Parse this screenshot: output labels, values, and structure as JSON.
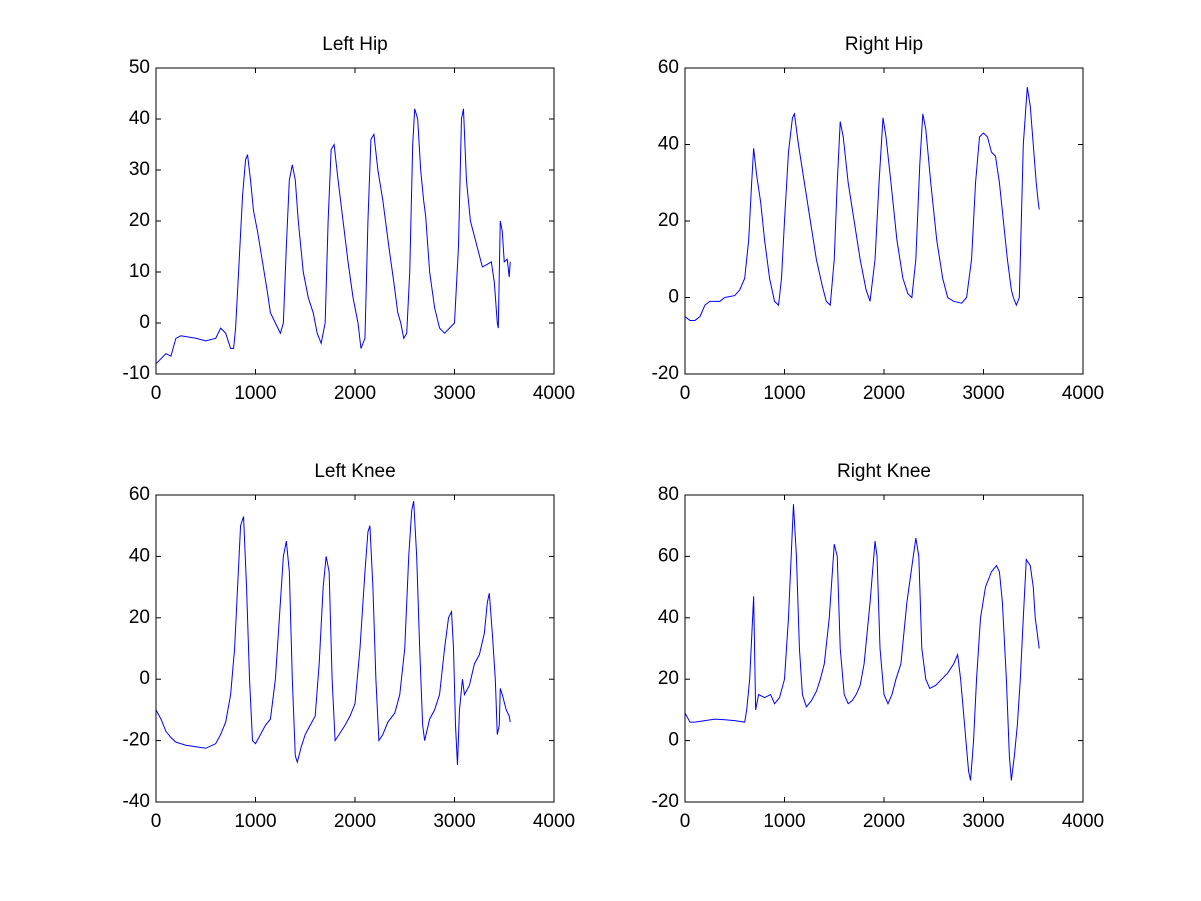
{
  "chart_data": [
    {
      "type": "line",
      "title": "Left Hip",
      "color": "#0000ff",
      "xlim": [
        0,
        4000
      ],
      "xticks": [
        0,
        1000,
        2000,
        3000,
        4000
      ],
      "ylim": [
        -10,
        50
      ],
      "yticks": [
        -10,
        0,
        10,
        20,
        30,
        40,
        50
      ],
      "x": [
        0,
        50,
        100,
        150,
        200,
        250,
        400,
        500,
        600,
        650,
        700,
        750,
        780,
        800,
        830,
        870,
        900,
        920,
        950,
        980,
        1020,
        1070,
        1120,
        1150,
        1200,
        1250,
        1280,
        1310,
        1340,
        1370,
        1400,
        1430,
        1480,
        1530,
        1580,
        1620,
        1660,
        1700,
        1730,
        1760,
        1790,
        1830,
        1880,
        1930,
        1980,
        2030,
        2060,
        2100,
        2130,
        2160,
        2190,
        2230,
        2280,
        2340,
        2390,
        2430,
        2460,
        2490,
        2520,
        2550,
        2580,
        2600,
        2630,
        2660,
        2690,
        2710,
        2750,
        2800,
        2850,
        2900,
        2950,
        3000,
        3040,
        3070,
        3090,
        3120,
        3160,
        3200,
        3240,
        3280,
        3330,
        3370,
        3400,
        3430,
        3440,
        3460,
        3480,
        3500,
        3530,
        3550,
        3560
      ],
      "values": [
        -8,
        -7,
        -6,
        -6.5,
        -3,
        -2.5,
        -3,
        -3.5,
        -3,
        -1,
        -2,
        -5,
        -5,
        -1,
        10,
        25,
        32,
        33,
        28,
        22,
        18,
        12,
        6,
        2,
        0,
        -2,
        0,
        15,
        28,
        31,
        28,
        20,
        10,
        5,
        2,
        -2,
        -4,
        0,
        20,
        34,
        35,
        28,
        20,
        12,
        5,
        0,
        -5,
        -3,
        20,
        36,
        37,
        30,
        24,
        15,
        8,
        2,
        0,
        -3,
        -2,
        10,
        35,
        42,
        40,
        30,
        24,
        21,
        10,
        3,
        -1,
        -2,
        -1,
        0,
        15,
        40,
        42,
        28,
        20,
        17,
        14,
        11,
        11.5,
        12,
        8,
        0,
        -1,
        20,
        18,
        12,
        12.5,
        9,
        12
      ]
    },
    {
      "type": "line",
      "title": "Right Hip",
      "color": "#0000ff",
      "xlim": [
        0,
        4000
      ],
      "xticks": [
        0,
        1000,
        2000,
        3000,
        4000
      ],
      "ylim": [
        -20,
        60
      ],
      "yticks": [
        -20,
        0,
        20,
        40,
        60
      ],
      "x": [
        0,
        50,
        100,
        150,
        200,
        250,
        350,
        400,
        500,
        550,
        600,
        640,
        670,
        690,
        720,
        760,
        800,
        850,
        900,
        940,
        970,
        1000,
        1040,
        1080,
        1100,
        1140,
        1200,
        1260,
        1320,
        1380,
        1420,
        1460,
        1500,
        1530,
        1560,
        1590,
        1640,
        1700,
        1760,
        1820,
        1860,
        1910,
        1950,
        1990,
        2020,
        2070,
        2130,
        2190,
        2240,
        2280,
        2320,
        2360,
        2390,
        2420,
        2470,
        2530,
        2590,
        2640,
        2700,
        2780,
        2830,
        2880,
        2920,
        2960,
        3000,
        3040,
        3080,
        3120,
        3160,
        3200,
        3240,
        3280,
        3300,
        3330,
        3360,
        3380,
        3400,
        3440,
        3470,
        3500,
        3530,
        3550,
        3560
      ],
      "values": [
        -5,
        -6,
        -6,
        -5,
        -2,
        -1,
        -1,
        0,
        0.5,
        2,
        5,
        15,
        30,
        39,
        32,
        25,
        15,
        5,
        -1,
        -2,
        5,
        20,
        38,
        47,
        48,
        40,
        30,
        20,
        10,
        3,
        -1,
        -2,
        10,
        30,
        46,
        42,
        30,
        20,
        10,
        2,
        -1,
        10,
        30,
        47,
        42,
        30,
        15,
        5,
        1,
        0,
        10,
        35,
        48,
        44,
        30,
        15,
        5,
        0,
        -1,
        -1.5,
        0,
        10,
        30,
        42,
        43,
        42,
        38,
        37,
        30,
        20,
        10,
        2,
        0,
        -2,
        0,
        20,
        40,
        55,
        50,
        40,
        30,
        25,
        23
      ]
    },
    {
      "type": "line",
      "title": "Left Knee",
      "color": "#0000ff",
      "xlim": [
        0,
        4000
      ],
      "xticks": [
        0,
        1000,
        2000,
        3000,
        4000
      ],
      "ylim": [
        -40,
        60
      ],
      "yticks": [
        -40,
        -20,
        0,
        20,
        40,
        60
      ],
      "x": [
        0,
        50,
        100,
        150,
        200,
        300,
        400,
        500,
        600,
        650,
        700,
        750,
        790,
        820,
        850,
        880,
        910,
        940,
        970,
        1000,
        1050,
        1100,
        1150,
        1200,
        1240,
        1280,
        1310,
        1340,
        1370,
        1400,
        1420,
        1460,
        1500,
        1550,
        1600,
        1640,
        1680,
        1710,
        1740,
        1770,
        1800,
        1840,
        1900,
        1950,
        2000,
        2050,
        2100,
        2130,
        2150,
        2180,
        2210,
        2240,
        2280,
        2330,
        2400,
        2450,
        2500,
        2540,
        2570,
        2590,
        2620,
        2650,
        2680,
        2700,
        2750,
        2800,
        2850,
        2900,
        2940,
        2970,
        2990,
        3010,
        3030,
        3050,
        3080,
        3100,
        3150,
        3200,
        3250,
        3300,
        3330,
        3350,
        3380,
        3410,
        3430,
        3450,
        3460,
        3480,
        3520,
        3550,
        3560
      ],
      "values": [
        -10,
        -13,
        -17,
        -19,
        -20.5,
        -21.5,
        -22,
        -22.5,
        -21,
        -18,
        -14,
        -5,
        10,
        30,
        50,
        53,
        30,
        0,
        -20,
        -21,
        -18,
        -15,
        -13,
        0,
        20,
        40,
        45,
        35,
        0,
        -25,
        -27,
        -22,
        -18,
        -15,
        -12,
        5,
        30,
        40,
        35,
        0,
        -20,
        -18,
        -15,
        -12,
        -8,
        10,
        35,
        48,
        50,
        30,
        0,
        -20,
        -18,
        -14,
        -11,
        -5,
        10,
        40,
        55,
        58,
        40,
        10,
        -15,
        -20,
        -13,
        -10,
        -5,
        10,
        20,
        22,
        10,
        -15,
        -28,
        -10,
        0,
        -5,
        -2,
        5,
        8,
        15,
        25,
        28,
        15,
        0,
        -18,
        -15,
        -3,
        -5,
        -10,
        -12,
        -14
      ]
    },
    {
      "type": "line",
      "title": "Right Knee",
      "color": "#0000ff",
      "xlim": [
        0,
        4000
      ],
      "xticks": [
        0,
        1000,
        2000,
        3000,
        4000
      ],
      "ylim": [
        -20,
        80
      ],
      "yticks": [
        -20,
        0,
        20,
        40,
        60,
        80
      ],
      "x": [
        0,
        50,
        100,
        200,
        300,
        400,
        500,
        600,
        620,
        650,
        690,
        710,
        740,
        800,
        860,
        900,
        950,
        1000,
        1040,
        1090,
        1120,
        1150,
        1180,
        1220,
        1270,
        1320,
        1360,
        1400,
        1450,
        1500,
        1530,
        1560,
        1600,
        1640,
        1680,
        1720,
        1760,
        1800,
        1860,
        1910,
        1930,
        1960,
        2000,
        2040,
        2080,
        2120,
        2170,
        2230,
        2320,
        2350,
        2380,
        2420,
        2460,
        2520,
        2580,
        2640,
        2700,
        2740,
        2770,
        2810,
        2850,
        2870,
        2900,
        2930,
        2970,
        3020,
        3080,
        3130,
        3160,
        3190,
        3230,
        3260,
        3280,
        3310,
        3340,
        3370,
        3400,
        3430,
        3470,
        3500,
        3520,
        3540,
        3560
      ],
      "values": [
        9,
        6,
        6,
        6.5,
        7,
        6.8,
        6.5,
        6,
        10,
        20,
        47,
        10,
        15,
        14,
        15,
        12,
        14,
        20,
        40,
        77,
        60,
        30,
        15,
        11,
        13,
        16,
        20,
        25,
        40,
        64,
        60,
        30,
        15,
        12,
        13,
        15,
        18,
        25,
        45,
        65,
        60,
        30,
        15,
        12,
        15,
        20,
        25,
        45,
        66,
        60,
        30,
        20,
        17,
        18,
        20,
        22,
        25,
        28,
        20,
        5,
        -10,
        -13,
        0,
        20,
        40,
        50,
        55,
        57,
        55,
        45,
        20,
        -5,
        -13,
        -5,
        5,
        20,
        40,
        59,
        57,
        50,
        40,
        35,
        30
      ]
    }
  ]
}
